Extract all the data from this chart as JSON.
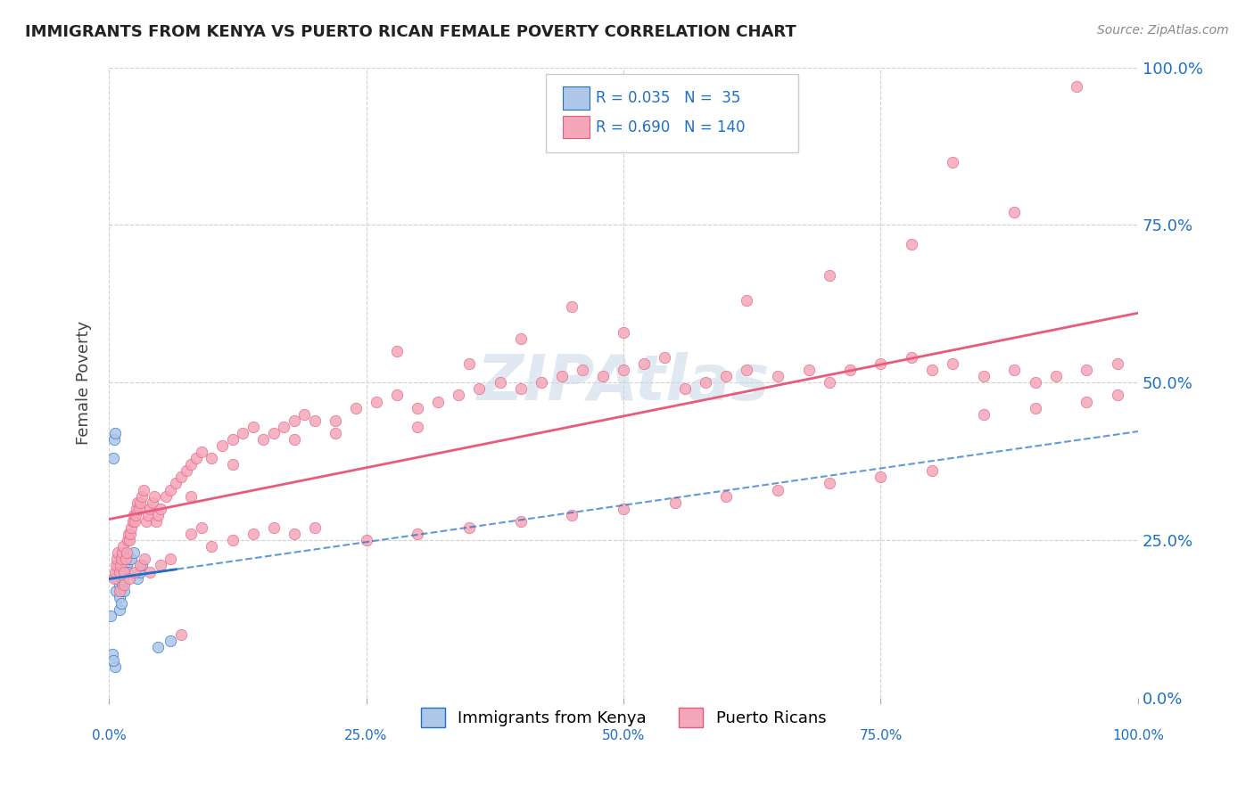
{
  "title": "IMMIGRANTS FROM KENYA VS PUERTO RICAN FEMALE POVERTY CORRELATION CHART",
  "source": "Source: ZipAtlas.com",
  "ylabel": "Female Poverty",
  "ytick_values": [
    0.0,
    0.25,
    0.5,
    0.75,
    1.0
  ],
  "xtick_values": [
    0.0,
    0.25,
    0.5,
    0.75,
    1.0
  ],
  "xlim": [
    0.0,
    1.0
  ],
  "ylim": [
    0.0,
    1.0
  ],
  "legend_label1": "Immigrants from Kenya",
  "legend_label2": "Puerto Ricans",
  "r_kenya": 0.035,
  "n_kenya": 35,
  "r_pr": 0.69,
  "n_pr": 140,
  "scatter_color_kenya": "#aec6e8",
  "scatter_color_pr": "#f4a7b9",
  "line_color_kenya": "#1f6fc6",
  "line_color_pr": "#e85b7a",
  "watermark_color": "#c8d8e8",
  "grid_color": "#d0d0d0",
  "title_color": "#222222",
  "kenya_x": [
    0.004,
    0.005,
    0.006,
    0.006,
    0.007,
    0.008,
    0.009,
    0.009,
    0.01,
    0.01,
    0.01,
    0.011,
    0.011,
    0.012,
    0.012,
    0.013,
    0.013,
    0.014,
    0.015,
    0.015,
    0.016,
    0.016,
    0.017,
    0.018,
    0.02,
    0.022,
    0.024,
    0.028,
    0.03,
    0.032,
    0.048,
    0.06,
    0.002,
    0.003,
    0.004
  ],
  "kenya_y": [
    0.38,
    0.41,
    0.05,
    0.42,
    0.17,
    0.19,
    0.2,
    0.21,
    0.14,
    0.16,
    0.18,
    0.2,
    0.22,
    0.15,
    0.17,
    0.18,
    0.2,
    0.19,
    0.17,
    0.2,
    0.21,
    0.22,
    0.21,
    0.2,
    0.22,
    0.22,
    0.23,
    0.19,
    0.2,
    0.21,
    0.08,
    0.09,
    0.13,
    0.07,
    0.06
  ],
  "pr_x": [
    0.005,
    0.006,
    0.007,
    0.008,
    0.009,
    0.01,
    0.011,
    0.012,
    0.013,
    0.014,
    0.015,
    0.016,
    0.017,
    0.018,
    0.019,
    0.02,
    0.021,
    0.022,
    0.023,
    0.024,
    0.025,
    0.026,
    0.027,
    0.028,
    0.029,
    0.03,
    0.032,
    0.034,
    0.036,
    0.038,
    0.04,
    0.042,
    0.044,
    0.046,
    0.048,
    0.05,
    0.055,
    0.06,
    0.065,
    0.07,
    0.075,
    0.08,
    0.085,
    0.09,
    0.1,
    0.11,
    0.12,
    0.13,
    0.14,
    0.15,
    0.16,
    0.17,
    0.18,
    0.19,
    0.2,
    0.22,
    0.24,
    0.26,
    0.28,
    0.3,
    0.32,
    0.34,
    0.36,
    0.38,
    0.4,
    0.42,
    0.44,
    0.46,
    0.48,
    0.5,
    0.52,
    0.54,
    0.56,
    0.58,
    0.6,
    0.62,
    0.65,
    0.68,
    0.7,
    0.72,
    0.75,
    0.78,
    0.8,
    0.82,
    0.85,
    0.88,
    0.9,
    0.92,
    0.95,
    0.98,
    0.01,
    0.015,
    0.02,
    0.025,
    0.03,
    0.035,
    0.04,
    0.05,
    0.06,
    0.07,
    0.08,
    0.09,
    0.1,
    0.12,
    0.14,
    0.16,
    0.18,
    0.2,
    0.25,
    0.3,
    0.35,
    0.4,
    0.45,
    0.5,
    0.55,
    0.6,
    0.65,
    0.7,
    0.75,
    0.8,
    0.85,
    0.9,
    0.95,
    0.98,
    0.62,
    0.7,
    0.78,
    0.82,
    0.88,
    0.94,
    0.4,
    0.5,
    0.45,
    0.35,
    0.3,
    0.28,
    0.22,
    0.18,
    0.12,
    0.08
  ],
  "pr_y": [
    0.19,
    0.2,
    0.21,
    0.22,
    0.23,
    0.2,
    0.21,
    0.22,
    0.23,
    0.24,
    0.2,
    0.22,
    0.23,
    0.25,
    0.26,
    0.25,
    0.26,
    0.27,
    0.28,
    0.29,
    0.28,
    0.29,
    0.3,
    0.31,
    0.3,
    0.31,
    0.32,
    0.33,
    0.28,
    0.29,
    0.3,
    0.31,
    0.32,
    0.28,
    0.29,
    0.3,
    0.32,
    0.33,
    0.34,
    0.35,
    0.36,
    0.37,
    0.38,
    0.39,
    0.38,
    0.4,
    0.41,
    0.42,
    0.43,
    0.41,
    0.42,
    0.43,
    0.44,
    0.45,
    0.44,
    0.44,
    0.46,
    0.47,
    0.48,
    0.46,
    0.47,
    0.48,
    0.49,
    0.5,
    0.49,
    0.5,
    0.51,
    0.52,
    0.51,
    0.52,
    0.53,
    0.54,
    0.49,
    0.5,
    0.51,
    0.52,
    0.51,
    0.52,
    0.5,
    0.52,
    0.53,
    0.54,
    0.52,
    0.53,
    0.51,
    0.52,
    0.5,
    0.51,
    0.52,
    0.53,
    0.17,
    0.18,
    0.19,
    0.2,
    0.21,
    0.22,
    0.2,
    0.21,
    0.22,
    0.1,
    0.26,
    0.27,
    0.24,
    0.25,
    0.26,
    0.27,
    0.26,
    0.27,
    0.25,
    0.26,
    0.27,
    0.28,
    0.29,
    0.3,
    0.31,
    0.32,
    0.33,
    0.34,
    0.35,
    0.36,
    0.45,
    0.46,
    0.47,
    0.48,
    0.63,
    0.67,
    0.72,
    0.85,
    0.77,
    0.97,
    0.57,
    0.58,
    0.62,
    0.53,
    0.43,
    0.55,
    0.42,
    0.41,
    0.37,
    0.32
  ]
}
